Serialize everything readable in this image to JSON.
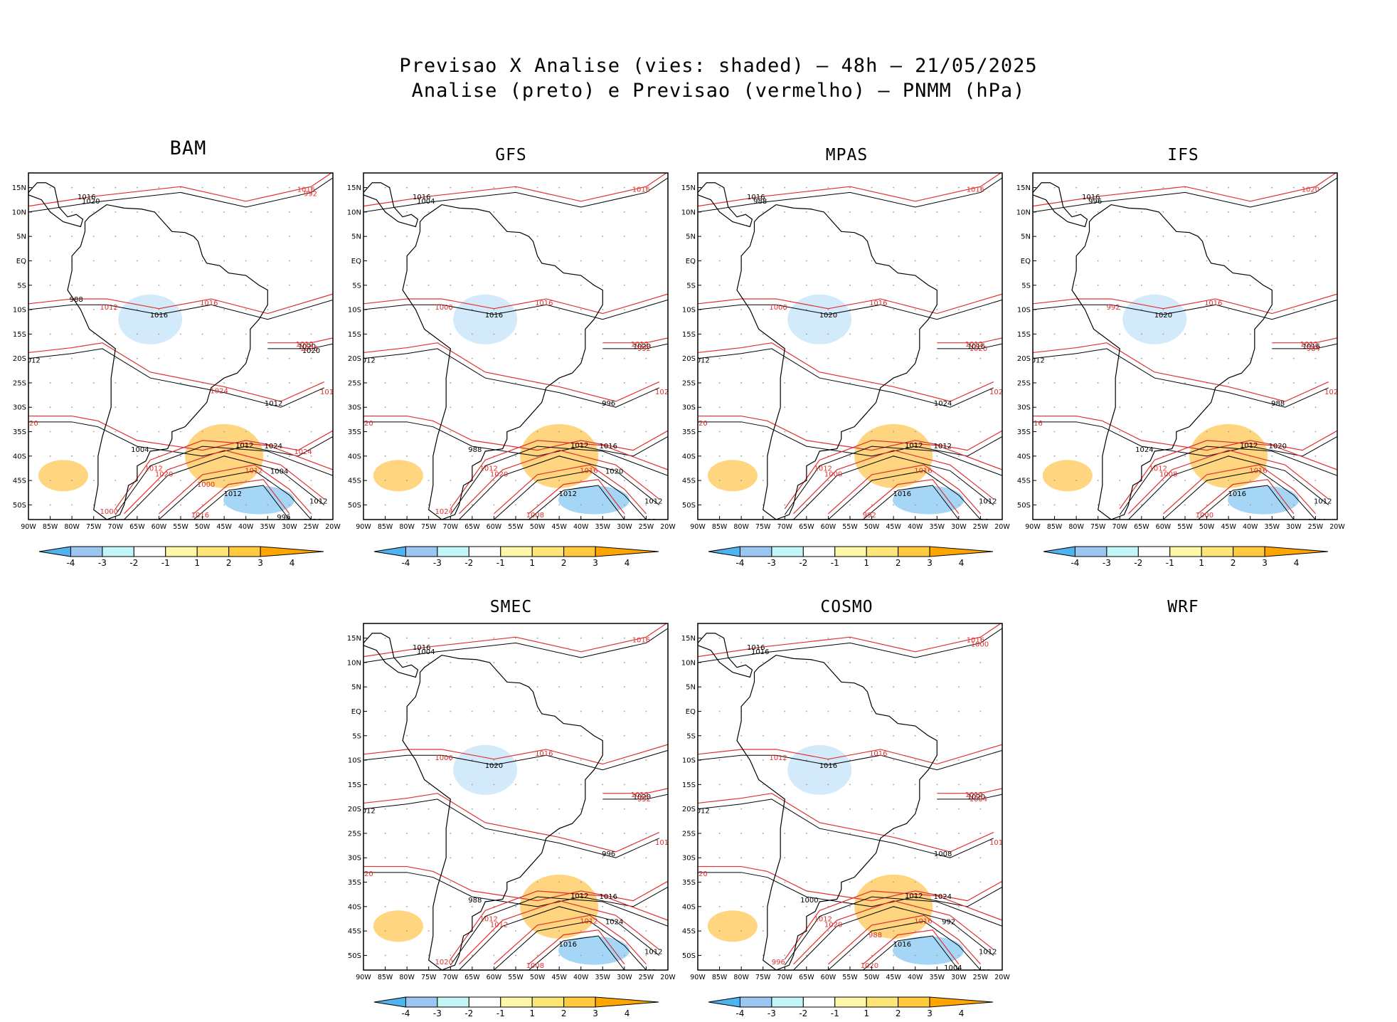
{
  "title": {
    "line1": "Previsao X Analise (vies: shaded) – 48h – 21/05/2025",
    "line2": "Analise (preto) e Previsao (vermelho) – PNMM (hPa)"
  },
  "map": {
    "lat_labels": [
      "15N",
      "10N",
      "5N",
      "EQ",
      "5S",
      "10S",
      "15S",
      "20S",
      "25S",
      "30S",
      "35S",
      "40S",
      "45S",
      "50S"
    ],
    "lon_labels": [
      "90W",
      "85W",
      "80W",
      "75W",
      "70W",
      "65W",
      "60W",
      "55W",
      "50W",
      "45W",
      "40W",
      "35W",
      "30W",
      "25W",
      "20W"
    ]
  },
  "colorbar": {
    "labels": [
      "-4",
      "-3",
      "-2",
      "-1",
      "1",
      "2",
      "3",
      "4"
    ],
    "colors": [
      "#4fb3f0",
      "#9cc6f2",
      "#c2f5f5",
      "#ffffff",
      "#fff7a8",
      "#fde57a",
      "#ffc940",
      "#ffa500"
    ]
  },
  "contour_colors": {
    "analysis": "#000000",
    "forecast": "#e03030",
    "bias_pos": "#ffbf3a",
    "bias_neg": "#7fc4f2"
  },
  "panels": [
    {
      "name": "BAM",
      "labels": [
        "1016",
        "1016",
        "1012",
        "1012",
        "1012",
        "1012",
        "1012",
        "1012",
        "1012",
        "1016",
        "1016",
        "1016",
        "1020",
        "1020",
        "1024",
        "1020",
        "1016",
        "1016",
        "1020",
        "1012",
        "1012",
        "1008",
        "1004",
        "1000",
        "1004",
        "1000",
        "996",
        "992",
        "988",
        "1024",
        "1020",
        "1024"
      ]
    },
    {
      "name": "GFS",
      "labels": [
        "1016",
        "1016",
        "1012",
        "1012",
        "1012",
        "1012",
        "1012",
        "1016",
        "1012",
        "1016",
        "1016",
        "1020",
        "1020",
        "1020",
        "1016",
        "1020",
        "1012",
        "1008",
        "1004",
        "1000",
        "996",
        "992",
        "988",
        "1024",
        "1020"
      ]
    },
    {
      "name": "MPAS",
      "labels": [
        "1016",
        "1016",
        "1012",
        "1012",
        "1012",
        "1012",
        "1012",
        "1016",
        "1016",
        "1016",
        "1020",
        "1020",
        "1016",
        "1020",
        "1012",
        "1000",
        "996",
        "992",
        "988",
        "1000",
        "1024",
        "1020"
      ]
    },
    {
      "name": "IFS",
      "labels": [
        "1016",
        "1016",
        "1012",
        "1012",
        "1012",
        "1012",
        "1012",
        "1016",
        "1016",
        "1020",
        "1020",
        "1020",
        "1016",
        "1016",
        "1020",
        "1008",
        "1004",
        "1000",
        "996",
        "992",
        "988",
        "984",
        "1024"
      ]
    },
    {
      "name": "SMEC",
      "labels": [
        "1016",
        "1016",
        "1012",
        "1012",
        "1012",
        "1012",
        "1012",
        "1012",
        "1016",
        "1016",
        "1020",
        "1016",
        "1020",
        "1020",
        "1016",
        "1012",
        "1012",
        "1008",
        "1004",
        "1000",
        "996",
        "992",
        "988",
        "1020",
        "1024"
      ]
    },
    {
      "name": "COSMO",
      "labels": [
        "1016",
        "1016",
        "1012",
        "1012",
        "1012",
        "1012",
        "1012",
        "1016",
        "1016",
        "1016",
        "1016",
        "1012",
        "1020",
        "1020",
        "1024",
        "1020",
        "1020",
        "1020",
        "1016",
        "1012",
        "1008",
        "1004",
        "1000",
        "996",
        "992",
        "988",
        "1004",
        "1000"
      ]
    },
    {
      "name": "WRF",
      "labels": []
    }
  ]
}
